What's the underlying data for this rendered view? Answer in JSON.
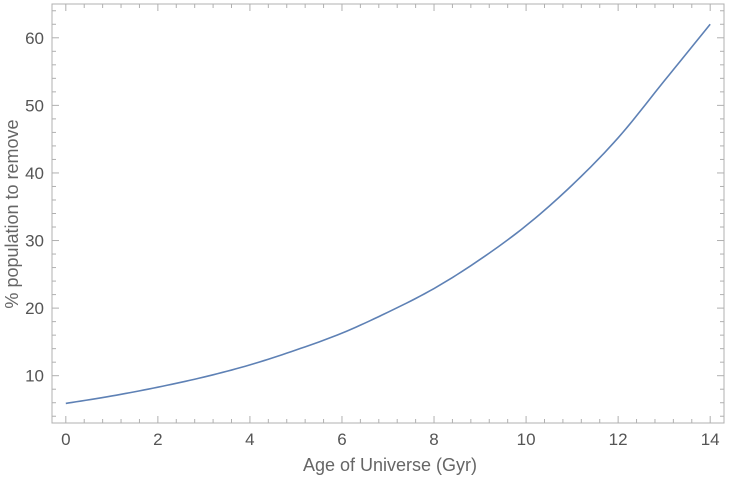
{
  "chart_data": {
    "type": "line",
    "title": "",
    "xlabel": "Age of Universe (Gyr)",
    "ylabel": "% population to remove",
    "xlim": [
      -0.3,
      14.3
    ],
    "ylim": [
      3,
      65
    ],
    "xticks": [
      0,
      2,
      4,
      6,
      8,
      10,
      12,
      14
    ],
    "yticks": [
      10,
      20,
      30,
      40,
      50,
      60
    ],
    "grid": false,
    "frame": "all-sides",
    "colors": {
      "line": "#5e81b5",
      "frame": "#b0b0b0",
      "text": "#555555"
    },
    "series": [
      {
        "x": [
          0,
          1,
          2,
          3,
          4,
          5,
          6,
          7,
          8,
          9,
          10,
          11,
          12,
          13,
          14
        ],
        "y": [
          5.9,
          7.0,
          8.3,
          9.8,
          11.6,
          13.8,
          16.3,
          19.4,
          22.9,
          27.2,
          32.2,
          38.2,
          45.2,
          53.6,
          62.0
        ]
      }
    ]
  }
}
